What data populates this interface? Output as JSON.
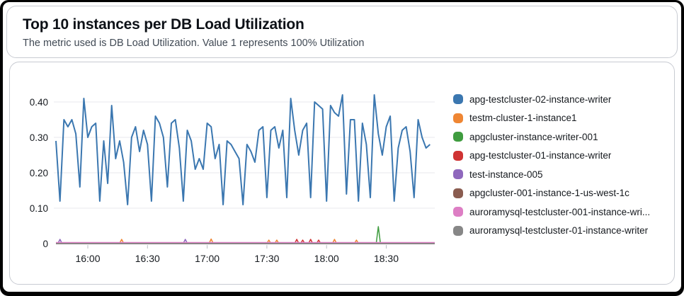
{
  "header": {
    "title": "Top 10 instances per DB Load Utilization",
    "subtitle": "The metric used is DB Load Utilization. Value 1 represents 100% Utilization"
  },
  "chart_data": {
    "type": "line",
    "title": "Top 10 instances per DB Load Utilization",
    "subtitle": "The metric used is DB Load Utilization. Value 1 represents 100% Utilization",
    "xlabel": "",
    "ylabel": "",
    "x_tick_labels": [
      "16:00",
      "16:30",
      "17:00",
      "17:30",
      "18:00",
      "18:30"
    ],
    "y_ticks": [
      0,
      0.1,
      0.2,
      0.3,
      0.4
    ],
    "y_tick_labels": [
      "0",
      "0.10",
      "0.20",
      "0.30",
      "0.40"
    ],
    "ylim": [
      0,
      0.44
    ],
    "x_start": "15:44",
    "x_end": "18:52",
    "sample_interval_minutes": 2,
    "grid": "horizontal-only",
    "legend_position": "right",
    "series": [
      {
        "name": "apg-testcluster-02-instance-writer",
        "color": "#3b77b0",
        "values": [
          0.29,
          0.12,
          0.35,
          0.33,
          0.35,
          0.31,
          0.16,
          0.41,
          0.3,
          0.33,
          0.34,
          0.12,
          0.29,
          0.17,
          0.39,
          0.24,
          0.29,
          0.23,
          0.11,
          0.3,
          0.33,
          0.26,
          0.32,
          0.28,
          0.12,
          0.36,
          0.34,
          0.3,
          0.16,
          0.34,
          0.35,
          0.27,
          0.12,
          0.32,
          0.29,
          0.21,
          0.24,
          0.21,
          0.34,
          0.33,
          0.24,
          0.28,
          0.11,
          0.29,
          0.28,
          0.26,
          0.24,
          0.11,
          0.28,
          0.26,
          0.23,
          0.32,
          0.33,
          0.13,
          0.32,
          0.33,
          0.27,
          0.32,
          0.13,
          0.41,
          0.32,
          0.25,
          0.32,
          0.34,
          0.13,
          0.4,
          0.39,
          0.38,
          0.12,
          0.39,
          0.37,
          0.36,
          0.42,
          0.14,
          0.35,
          0.35,
          0.12,
          0.34,
          0.28,
          0.13,
          0.42,
          0.31,
          0.25,
          0.33,
          0.36,
          0.12,
          0.27,
          0.32,
          0.33,
          0.26,
          0.13,
          0.35,
          0.3,
          0.27,
          0.28
        ]
      },
      {
        "name": "testm-cluster-1-instance1",
        "color": "#ef8633",
        "baseline": 0,
        "spikes": [
          {
            "t": "16:17",
            "v": 0.012
          },
          {
            "t": "17:02",
            "v": 0.013
          },
          {
            "t": "17:31",
            "v": 0.01
          },
          {
            "t": "17:35",
            "v": 0.01
          },
          {
            "t": "18:04",
            "v": 0.012
          },
          {
            "t": "18:15",
            "v": 0.01
          }
        ]
      },
      {
        "name": "apgcluster-instance-writer-001",
        "color": "#3f9c3f",
        "baseline": 0,
        "spikes": [
          {
            "t": "18:26",
            "v": 0.048
          }
        ]
      },
      {
        "name": "apg-testcluster-01-instance-writer",
        "color": "#cf3333",
        "baseline": 0,
        "spikes": [
          {
            "t": "17:45",
            "v": 0.012
          },
          {
            "t": "17:48",
            "v": 0.01
          },
          {
            "t": "17:52",
            "v": 0.012
          },
          {
            "t": "17:56",
            "v": 0.01
          }
        ]
      },
      {
        "name": "test-instance-005",
        "color": "#8f68bd",
        "baseline": 0,
        "spikes": [
          {
            "t": "15:46",
            "v": 0.012
          },
          {
            "t": "16:49",
            "v": 0.012
          }
        ]
      },
      {
        "name": "apgcluster-001-instance-1-us-west-1c",
        "color": "#8a5c50",
        "baseline": 0,
        "spikes": []
      },
      {
        "name": "auroramysql-testcluster-001-instance-wri...",
        "color": "#dd7ec4",
        "baseline": 0,
        "spikes": []
      },
      {
        "name": "auroramysql-testcluster-01-instance-writer",
        "color": "#878787",
        "baseline": 0,
        "spikes": []
      }
    ]
  }
}
